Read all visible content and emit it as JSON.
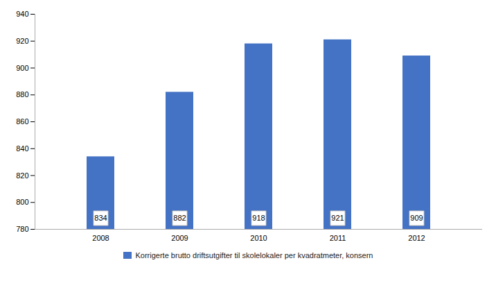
{
  "chart_data": {
    "type": "bar",
    "categories": [
      "2008",
      "2009",
      "2010",
      "2011",
      "2012"
    ],
    "series": [
      {
        "name": "Korrigerte brutto driftsutgifter til skolelokaler per kvadratmeter, konsern",
        "color": "#4472C4",
        "values": [
          834,
          882,
          918,
          921,
          909
        ]
      }
    ],
    "ylim": [
      780,
      940
    ],
    "yticks": [
      780,
      800,
      820,
      840,
      860,
      880,
      900,
      920,
      940
    ],
    "grid": false,
    "data_labels": true,
    "legend": "bottom"
  }
}
